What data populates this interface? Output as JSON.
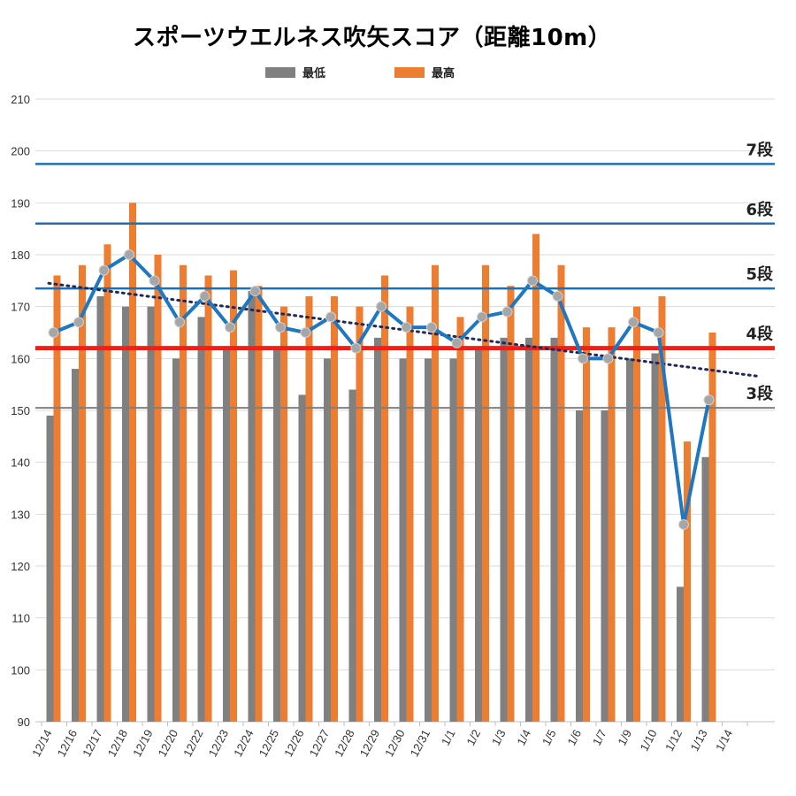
{
  "chart_data": {
    "type": "bar",
    "title": "スポーツウエルネス吹矢スコア（距離10m）",
    "categories": [
      "12/14",
      "12/16",
      "12/17",
      "12/18",
      "12/19",
      "12/20",
      "12/22",
      "12/23",
      "12/24",
      "12/25",
      "12/26",
      "12/27",
      "12/28",
      "12/29",
      "12/30",
      "12/31",
      "1/1",
      "1/2",
      "1/3",
      "1/4",
      "1/5",
      "1/6",
      "1/7",
      "1/9",
      "1/10",
      "1/12",
      "1/13",
      "1/14"
    ],
    "series": [
      {
        "name": "最低",
        "type": "bar",
        "color": "#808080",
        "values": [
          149,
          158,
          172,
          170,
          170,
          160,
          168,
          162,
          173,
          162,
          153,
          160,
          154,
          164,
          160,
          160,
          160,
          162,
          164,
          164,
          164,
          150,
          150,
          160,
          161,
          116,
          141,
          null
        ]
      },
      {
        "name": "最高",
        "type": "bar",
        "color": "#ED7D31",
        "values": [
          176,
          178,
          182,
          190,
          180,
          178,
          176,
          177,
          174,
          170,
          172,
          172,
          170,
          176,
          170,
          178,
          168,
          178,
          174,
          184,
          178,
          166,
          166,
          170,
          172,
          144,
          165,
          null
        ]
      },
      {
        "type": "line",
        "color": "#1F77C0",
        "values": [
          165,
          167,
          177,
          180,
          175,
          167,
          172,
          166,
          173,
          166,
          165,
          168,
          162,
          170,
          166,
          166,
          163,
          168,
          169,
          175,
          172,
          160,
          160,
          167,
          165,
          128,
          152,
          null
        ]
      }
    ],
    "trendline": {
      "type": "linear",
      "style": "dotted",
      "color": "#1F2A5A",
      "from": 174.5,
      "to": 156.6
    },
    "reference_lines": [
      {
        "label": "7段",
        "value": 197.5,
        "color": "#1F6FB5"
      },
      {
        "label": "6段",
        "value": 186,
        "color": "#1F6FB5"
      },
      {
        "label": "5段",
        "value": 173.5,
        "color": "#1F6FB5"
      },
      {
        "label": "4段",
        "value": 162,
        "color": "#FF1A1A"
      },
      {
        "label": "3段",
        "value": 150.5,
        "color": "#7F7F7F"
      }
    ],
    "y_ticks": [
      90,
      100,
      110,
      120,
      130,
      140,
      150,
      160,
      170,
      180,
      190,
      200,
      210
    ],
    "ylim": [
      90,
      210
    ],
    "grid": true,
    "legend_position": "top"
  }
}
